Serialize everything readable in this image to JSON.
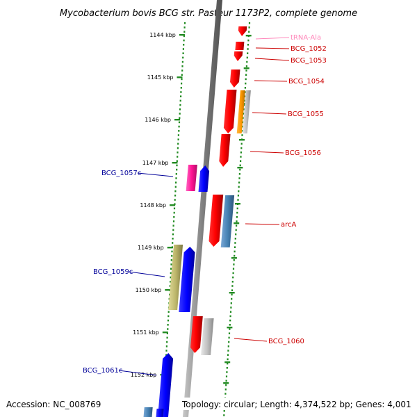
{
  "map": {
    "title": "Mycobacterium bovis BCG str. Pasteur 1173P2, complete genome",
    "accession": "Accession: NC_008769",
    "topology": "Topology: circular; Length: 4,374,522 bp; Genes: 4,001"
  },
  "ticks": [
    "1144 kbp",
    "1145 kbp",
    "1146 kbp",
    "1147 kbp",
    "1148 kbp",
    "1149 kbp",
    "1150 kbp",
    "1151 kbp",
    "1152 kbp"
  ],
  "genes": [
    {
      "label": "tRNA-Ala",
      "strand": "forward",
      "color": "#ff88bb"
    },
    {
      "label": "BCG_1052",
      "strand": "forward",
      "color": "#ff0000"
    },
    {
      "label": "BCG_1053",
      "strand": "forward",
      "color": "#ff0000"
    },
    {
      "label": "BCG_1054",
      "strand": "forward",
      "color": "#ff0000"
    },
    {
      "label": "BCG_1055",
      "strand": "forward",
      "color": "#ff0000"
    },
    {
      "label": "BCG_1056",
      "strand": "forward",
      "color": "#ff0000"
    },
    {
      "label": "BCG_1057c",
      "strand": "reverse",
      "color": "#ff1493"
    },
    {
      "label": "arcA",
      "strand": "forward",
      "color": "#ff0000"
    },
    {
      "label": "BCG_1059c",
      "strand": "reverse",
      "color": "#0000ff"
    },
    {
      "label": "BCG_1060",
      "strand": "forward",
      "color": "#ff0000"
    },
    {
      "label": "BCG_1061c",
      "strand": "reverse",
      "color": "#0000ff"
    }
  ],
  "colors": {
    "backbone": "#808080",
    "tick_mark": "#228b22",
    "forward_label": "#cc0000",
    "reverse_label": "#000099",
    "trna_label": "#ff88bb",
    "cds_red": "#ff0000",
    "cds_blue": "#0000ff",
    "cds_pink": "#ff1493",
    "cds_orange": "#ff9900",
    "cds_steel": "#4682b4",
    "cds_khaki": "#bdb76b",
    "cds_gray": "#c0c0c0"
  }
}
